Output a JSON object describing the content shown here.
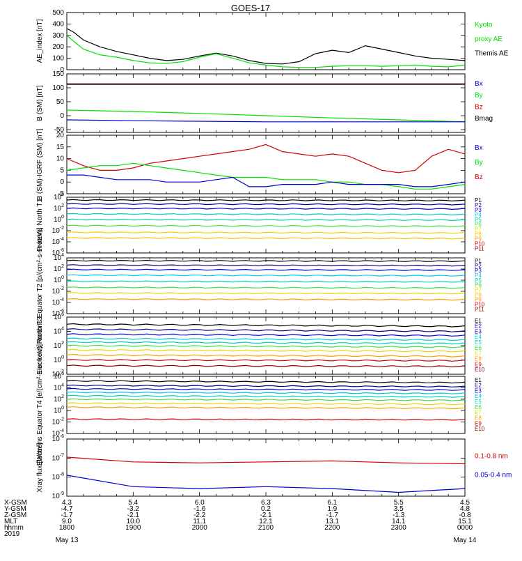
{
  "title": "GOES-17",
  "colors": {
    "black": "#000000",
    "green": "#00e000",
    "red": "#d00000",
    "darkred": "#8b0000",
    "blue": "#0000d0",
    "navy": "#00008b",
    "cyan": "#00c8e0",
    "teal": "#00b8a0",
    "lime": "#40e040",
    "yellow": "#e8d800",
    "orange": "#ffa000",
    "magenta": "#c000a0"
  },
  "x_ticks": [
    "1800",
    "1900",
    "2000",
    "2100",
    "2200",
    "2300",
    "0000"
  ],
  "date_labels": {
    "start": "May 13",
    "end": "May 14"
  },
  "ephemeris": {
    "row_labels": [
      "X-GSM",
      "Y-GSM",
      "Z-GSM",
      "MLT",
      "hhmm",
      "2019"
    ],
    "rows": [
      [
        "4.3",
        "5.4",
        "6.0",
        "6.3",
        "6.1",
        "5.5",
        "4.5"
      ],
      [
        "-4.7",
        "-3.2",
        "-1.6",
        "0.2",
        "1.9",
        "3.5",
        "4.8"
      ],
      [
        "-1.7",
        "-2.1",
        "-2.2",
        "-2.1",
        "-1.7",
        "-1.3",
        "-0.8"
      ],
      [
        "9.0",
        "10.0",
        "11.1",
        "12.1",
        "13.1",
        "14.1",
        "15.1"
      ],
      [
        "1800",
        "1900",
        "2000",
        "2100",
        "2200",
        "2300",
        "0000"
      ],
      [
        "",
        "",
        "",
        "",
        "",
        "",
        ""
      ]
    ]
  },
  "chart_data": [
    {
      "type": "line",
      "id": "ae",
      "ylabel": "AE_index [nT]",
      "ylim": [
        0,
        500
      ],
      "yticks": [
        "0",
        "100",
        "200",
        "300",
        "400",
        "500"
      ],
      "legend": [
        {
          "text": "Kyoto",
          "color": "#00e000"
        },
        {
          "text": "proxy AE",
          "color": "#00e000"
        },
        {
          "text": "Themis AE",
          "color": "#000000"
        }
      ],
      "series": [
        {
          "name": "Themis AE",
          "color": "#000000",
          "x": [
            18.0,
            18.1,
            18.25,
            18.5,
            18.75,
            19.0,
            19.25,
            19.5,
            19.75,
            20.0,
            20.25,
            20.5,
            20.75,
            21.0,
            21.25,
            21.5,
            21.75,
            22.0,
            22.25,
            22.5,
            22.75,
            23.0,
            23.25,
            23.5,
            23.75,
            24.0
          ],
          "y": [
            360,
            330,
            260,
            200,
            160,
            130,
            100,
            80,
            90,
            120,
            145,
            120,
            80,
            55,
            50,
            70,
            140,
            170,
            150,
            210,
            180,
            150,
            120,
            100,
            90,
            80
          ]
        },
        {
          "name": "Kyoto proxy AE",
          "color": "#00e000",
          "x": [
            18.0,
            18.1,
            18.25,
            18.5,
            18.75,
            19.0,
            19.25,
            19.5,
            19.75,
            20.0,
            20.25,
            20.5,
            20.75,
            21.0,
            21.25,
            21.5,
            21.75,
            22.0,
            22.25,
            22.5,
            22.75,
            23.0,
            23.25,
            23.5,
            23.75,
            24.0
          ],
          "y": [
            300,
            250,
            180,
            130,
            110,
            80,
            60,
            55,
            70,
            110,
            140,
            100,
            60,
            40,
            25,
            20,
            20,
            30,
            35,
            35,
            30,
            35,
            40,
            30,
            25,
            40
          ]
        }
      ]
    },
    {
      "type": "line",
      "id": "bsm",
      "ylabel": "B (SM) [nT]",
      "ylim": [
        -60,
        150
      ],
      "yticks": [
        "-50",
        "0",
        "50",
        "100",
        "150"
      ],
      "yticks_values": [
        -50,
        0,
        50,
        100,
        150
      ],
      "legend": [
        {
          "text": "Bx",
          "color": "#0000d0"
        },
        {
          "text": "By",
          "color": "#00e000"
        },
        {
          "text": "Bz",
          "color": "#d00000"
        },
        {
          "text": "Bmag",
          "color": "#000000"
        }
      ],
      "series": [
        {
          "name": "Bz",
          "color": "#8b0000",
          "x": [
            18.0,
            24.0
          ],
          "y": [
            112,
            112
          ]
        },
        {
          "name": "Bmag",
          "color": "#000000",
          "x": [
            18.0,
            24.0
          ],
          "y": [
            114,
            114
          ]
        },
        {
          "name": "By",
          "color": "#00e000",
          "x": [
            18.0,
            19.0,
            20.0,
            21.0,
            22.0,
            23.0,
            24.0
          ],
          "y": [
            20,
            15,
            8,
            0,
            -8,
            -15,
            -22
          ]
        },
        {
          "name": "Bx",
          "color": "#0000d0",
          "x": [
            18.0,
            19.0,
            20.0,
            21.0,
            22.0,
            23.0,
            24.0
          ],
          "y": [
            -15,
            -18,
            -20,
            -22,
            -22,
            -22,
            -22
          ]
        }
      ]
    },
    {
      "type": "line",
      "id": "bigrf",
      "ylabel": "B (SM)-IGRF (SM) [nT]",
      "ylim": [
        -5,
        20
      ],
      "yticks": [
        "-5",
        "0",
        "5",
        "10",
        "15",
        "20"
      ],
      "legend": [
        {
          "text": "Bx",
          "color": "#0000d0"
        },
        {
          "text": "By",
          "color": "#00e000"
        },
        {
          "text": "Bz",
          "color": "#d00000"
        }
      ],
      "series": [
        {
          "name": "Bz",
          "color": "#d00000",
          "x": [
            18.0,
            18.25,
            18.5,
            18.75,
            19.0,
            19.25,
            19.5,
            19.75,
            20.0,
            20.25,
            20.5,
            20.75,
            21.0,
            21.25,
            21.5,
            21.75,
            22.0,
            22.25,
            22.5,
            22.75,
            23.0,
            23.25,
            23.5,
            23.75,
            24.0
          ],
          "y": [
            10,
            7,
            5,
            5,
            6,
            8,
            9,
            10,
            11,
            12,
            13,
            14,
            16,
            13,
            12,
            11,
            12,
            11,
            8,
            5,
            4,
            5,
            11,
            14,
            12
          ]
        },
        {
          "name": "By",
          "color": "#00e000",
          "x": [
            18.0,
            18.25,
            18.5,
            18.75,
            19.0,
            19.25,
            19.5,
            19.75,
            20.0,
            20.25,
            20.5,
            20.75,
            21.0,
            21.25,
            21.5,
            21.75,
            22.0,
            22.25,
            22.5,
            22.75,
            23.0,
            23.25,
            23.5,
            23.75,
            24.0
          ],
          "y": [
            5,
            6,
            7,
            7,
            8,
            7,
            6,
            5,
            4,
            3,
            2,
            2,
            2,
            1,
            1,
            1,
            0,
            0,
            -1,
            -1,
            -2,
            -3,
            -3,
            -2,
            -1
          ]
        },
        {
          "name": "Bx",
          "color": "#0000d0",
          "x": [
            18.0,
            18.25,
            18.5,
            18.75,
            19.0,
            19.25,
            19.5,
            19.75,
            20.0,
            20.25,
            20.5,
            20.75,
            21.0,
            21.25,
            21.5,
            21.75,
            22.0,
            22.25,
            22.5,
            22.75,
            23.0,
            23.25,
            23.5,
            23.75,
            24.0
          ],
          "y": [
            3,
            3,
            2,
            1,
            1,
            1,
            0,
            0,
            0,
            1,
            2,
            -2,
            -2,
            -1,
            -1,
            -1,
            0,
            -1,
            -1,
            -1,
            -1,
            -2,
            -2,
            -1,
            0
          ]
        }
      ]
    },
    {
      "type": "line",
      "id": "pn",
      "ylabel": "Protons North T1",
      "ylog": true,
      "ylim_exp": [
        -6,
        4
      ],
      "yticks_exp": [
        -6,
        -4,
        -2,
        0,
        2,
        4
      ],
      "legend": [
        {
          "text": "P1",
          "color": "#000000"
        },
        {
          "text": "P2",
          "color": "#00008b"
        },
        {
          "text": "P3",
          "color": "#0000d0"
        },
        {
          "text": "P4",
          "color": "#00c8e0"
        },
        {
          "text": "P5",
          "color": "#00d0c0"
        },
        {
          "text": "P6",
          "color": "#40e040"
        },
        {
          "text": "P7",
          "color": "#e8d800"
        },
        {
          "text": "P8",
          "color": "#ffc000"
        },
        {
          "text": "P9",
          "color": "#ffa000"
        },
        {
          "text": "P10",
          "color": "#d00000"
        },
        {
          "text": "P11",
          "color": "#8b0000"
        }
      ],
      "series": [
        {
          "name": "P1",
          "color": "#000000",
          "log10": [
            3.5,
            3.4
          ]
        },
        {
          "name": "P2",
          "color": "#00008b",
          "log10": [
            2.8,
            2.7
          ]
        },
        {
          "name": "P3",
          "color": "#0000d0",
          "log10": [
            2.0,
            1.9
          ]
        },
        {
          "name": "P4",
          "color": "#00c8e0",
          "log10": [
            1.0,
            0.9
          ]
        },
        {
          "name": "P5",
          "color": "#00d0c0",
          "log10": [
            0.0,
            -0.1
          ]
        },
        {
          "name": "P6",
          "color": "#40e040",
          "log10": [
            -1.1,
            -1.2
          ]
        },
        {
          "name": "P7",
          "color": "#e8d800",
          "log10": [
            -2.3,
            -2.4
          ]
        },
        {
          "name": "P8",
          "color": "#ffc000",
          "log10": [
            -3.3,
            -3.4
          ]
        }
      ]
    },
    {
      "type": "line",
      "id": "pe",
      "ylabel": "Protons Equator T2 [p/(cm²-s-sr-keV)]",
      "ylog": true,
      "ylim_exp": [
        -6,
        4
      ],
      "yticks_exp": [
        -6,
        -4,
        -2,
        0,
        2,
        4
      ],
      "legend": [
        {
          "text": "P1",
          "color": "#000000"
        },
        {
          "text": "P2",
          "color": "#00008b"
        },
        {
          "text": "P3",
          "color": "#0000d0"
        },
        {
          "text": "P4",
          "color": "#00c8e0"
        },
        {
          "text": "P5",
          "color": "#00d0c0"
        },
        {
          "text": "P6",
          "color": "#40e040"
        },
        {
          "text": "P7",
          "color": "#e8d800"
        },
        {
          "text": "P8",
          "color": "#ffc000"
        },
        {
          "text": "P9",
          "color": "#ffa000"
        },
        {
          "text": "P10",
          "color": "#d00000"
        },
        {
          "text": "P11",
          "color": "#8b0000"
        }
      ],
      "series": [
        {
          "name": "P1",
          "color": "#000000",
          "log10": [
            3.5,
            3.4
          ]
        },
        {
          "name": "P2",
          "color": "#00008b",
          "log10": [
            2.7,
            2.6
          ]
        },
        {
          "name": "P3",
          "color": "#0000d0",
          "log10": [
            1.9,
            1.8
          ]
        },
        {
          "name": "P4",
          "color": "#00c8e0",
          "log10": [
            0.9,
            0.8
          ]
        },
        {
          "name": "P5",
          "color": "#00d0c0",
          "log10": [
            -0.2,
            -0.3
          ]
        },
        {
          "name": "P6",
          "color": "#40e040",
          "log10": [
            -1.3,
            -1.4
          ]
        },
        {
          "name": "P7",
          "color": "#e8d800",
          "log10": [
            -2.3,
            -2.4
          ]
        },
        {
          "name": "P8",
          "color": "#ffa000",
          "log10": [
            -3.4,
            -3.5
          ]
        }
      ]
    },
    {
      "type": "line",
      "id": "en",
      "ylabel": "Electrons North T3",
      "ylog": true,
      "ylim_exp": [
        -2,
        6
      ],
      "yticks_exp": [
        -2,
        0,
        2,
        4,
        6
      ],
      "legend": [
        {
          "text": "E1",
          "color": "#000000"
        },
        {
          "text": "E2",
          "color": "#00008b"
        },
        {
          "text": "E3",
          "color": "#0000d0"
        },
        {
          "text": "E4",
          "color": "#00c8e0"
        },
        {
          "text": "E5",
          "color": "#00d0c0"
        },
        {
          "text": "E6",
          "color": "#40e040"
        },
        {
          "text": "E7",
          "color": "#e8d800"
        },
        {
          "text": "E8",
          "color": "#ffa000"
        },
        {
          "text": "E9",
          "color": "#d00000"
        },
        {
          "text": "E10",
          "color": "#8b0000"
        }
      ],
      "series": [
        {
          "name": "E1",
          "color": "#000000",
          "log10": [
            5.0,
            4.7
          ]
        },
        {
          "name": "E2",
          "color": "#00008b",
          "log10": [
            4.3,
            4.0
          ]
        },
        {
          "name": "E3",
          "color": "#0000d0",
          "log10": [
            3.6,
            3.4
          ]
        },
        {
          "name": "E4",
          "color": "#00c8e0",
          "log10": [
            3.0,
            2.8
          ]
        },
        {
          "name": "E5",
          "color": "#00d0c0",
          "log10": [
            2.5,
            2.3
          ]
        },
        {
          "name": "E6",
          "color": "#40e040",
          "log10": [
            2.0,
            1.8
          ]
        },
        {
          "name": "E7",
          "color": "#e8d800",
          "log10": [
            1.4,
            1.2
          ]
        },
        {
          "name": "E8",
          "color": "#ffa000",
          "log10": [
            0.7,
            0.5
          ]
        },
        {
          "name": "E9",
          "color": "#d00000",
          "log10": [
            0.0,
            -0.1
          ]
        },
        {
          "name": "E10",
          "color": "#8b0000",
          "log10": [
            -0.8,
            -0.9
          ]
        }
      ]
    },
    {
      "type": "line",
      "id": "ee",
      "ylabel": "Electrons Equator T4 [e/(cm²-s-sr-keV)]",
      "ylog": true,
      "ylim_exp": [
        -4,
        6
      ],
      "yticks_exp": [
        -4,
        -2,
        0,
        2,
        4,
        6
      ],
      "legend": [
        {
          "text": "E1",
          "color": "#000000"
        },
        {
          "text": "E2",
          "color": "#00008b"
        },
        {
          "text": "E3",
          "color": "#0000d0"
        },
        {
          "text": "E4",
          "color": "#00c8e0"
        },
        {
          "text": "E5",
          "color": "#00d0c0"
        },
        {
          "text": "E6",
          "color": "#40e040"
        },
        {
          "text": "E7",
          "color": "#e8d800"
        },
        {
          "text": "E8",
          "color": "#ffa000"
        },
        {
          "text": "E9",
          "color": "#d00000"
        },
        {
          "text": "E10",
          "color": "#8b0000"
        }
      ],
      "series": [
        {
          "name": "E1",
          "color": "#000000",
          "log10": [
            5.2,
            4.9
          ]
        },
        {
          "name": "E2",
          "color": "#00008b",
          "log10": [
            4.4,
            4.2
          ]
        },
        {
          "name": "E3",
          "color": "#0000d0",
          "log10": [
            3.8,
            3.6
          ]
        },
        {
          "name": "E4",
          "color": "#00c8e0",
          "log10": [
            3.2,
            3.0
          ]
        },
        {
          "name": "E5",
          "color": "#00d0c0",
          "log10": [
            2.6,
            2.4
          ]
        },
        {
          "name": "E6",
          "color": "#40e040",
          "log10": [
            2.0,
            1.8
          ]
        },
        {
          "name": "E7",
          "color": "#e8d800",
          "log10": [
            1.3,
            1.1
          ]
        },
        {
          "name": "E8",
          "color": "#ffa000",
          "log10": [
            0.6,
            0.4
          ]
        },
        {
          "name": "E9",
          "color": "#d00000",
          "log10": [
            -1.5,
            -1.6
          ]
        }
      ]
    },
    {
      "type": "line",
      "id": "xray",
      "ylabel": "Xray flux [W/m²]",
      "ylog": true,
      "ylim_exp": [
        -9,
        -6
      ],
      "yticks_exp": [
        -9,
        -8,
        -7,
        -6
      ],
      "legend": [
        {
          "text": "0.1-0.8 nm",
          "color": "#d00000"
        },
        {
          "text": "0.05-0.4 nm",
          "color": "#0000d0"
        }
      ],
      "series": [
        {
          "name": "0.1-0.8 nm",
          "color": "#d00000",
          "x": [
            18.0,
            19.0,
            20.0,
            21.0,
            22.0,
            23.0,
            24.0
          ],
          "log10": [
            -6.95,
            -7.2,
            -7.25,
            -7.2,
            -7.15,
            -7.25,
            -7.3
          ]
        },
        {
          "name": "0.05-0.4 nm",
          "color": "#0000d0",
          "x": [
            18.0,
            19.0,
            20.0,
            21.0,
            22.0,
            23.0,
            24.0
          ],
          "log10": [
            -7.9,
            -8.5,
            -8.6,
            -8.5,
            -8.6,
            -8.8,
            -8.6
          ]
        }
      ]
    }
  ]
}
